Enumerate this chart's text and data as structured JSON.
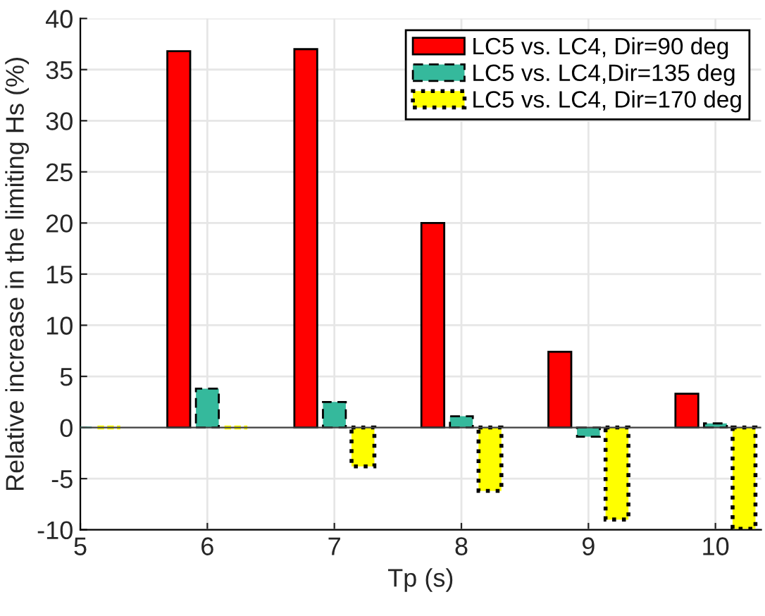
{
  "chart_data": {
    "type": "bar",
    "xlabel": "Tp (s)",
    "ylabel": "Relative increase in the limiting Hs (%)",
    "x": [
      5,
      6,
      7,
      8,
      9,
      10
    ],
    "series": [
      {
        "name": "LC5 vs. LC4, Dir=90 deg",
        "color": "#ff0000",
        "line_style": "solid",
        "values": [
          null,
          36.8,
          37.0,
          20.0,
          7.4,
          3.3
        ]
      },
      {
        "name": "LC5 vs. LC4,Dir=135 deg",
        "color": "#35b99c",
        "line_style": "dashed",
        "values": [
          0,
          3.8,
          2.5,
          1.1,
          -0.9,
          0.4
        ]
      },
      {
        "name": "LC5 vs. LC4, Dir=170 deg",
        "color": "#ffff00",
        "line_style": "dotted",
        "values": [
          0,
          0,
          -3.8,
          -6.2,
          -9.0,
          -9.9
        ]
      }
    ],
    "xlim": [
      5,
      10.36
    ],
    "xticks": [
      5,
      6,
      7,
      8,
      9,
      10
    ],
    "ylim": [
      -10,
      40
    ],
    "yticks": [
      -10,
      -5,
      0,
      5,
      10,
      15,
      20,
      25,
      30,
      35,
      40
    ],
    "grid": true,
    "legend": "top right"
  }
}
